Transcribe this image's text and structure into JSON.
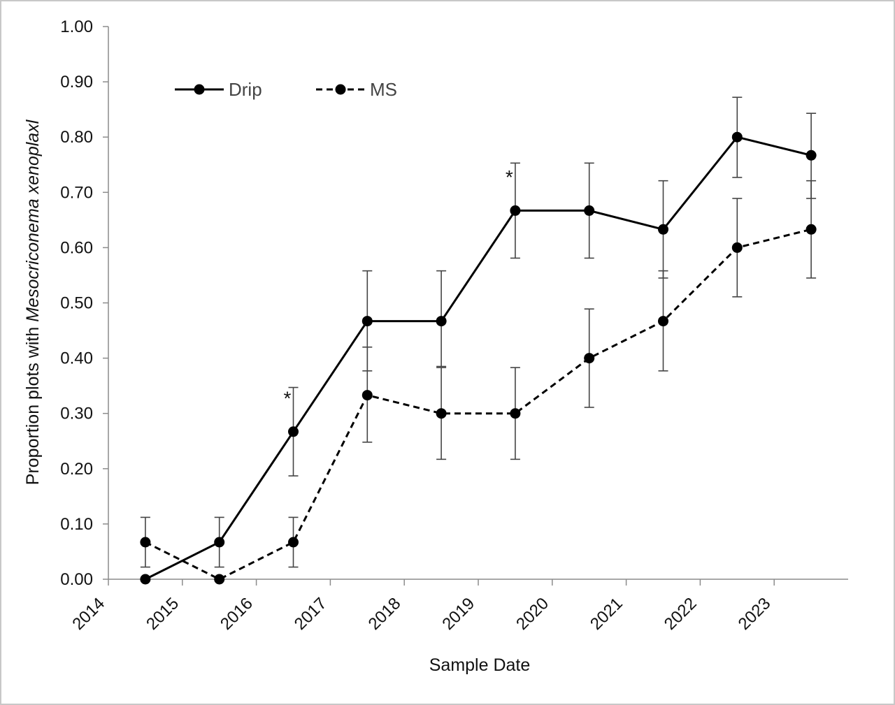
{
  "chart_data": {
    "type": "line",
    "xlabel": "Sample Date",
    "ylabel_prefix": "Proportion plots with ",
    "ylabel_italic": "Mesocriconema xenoplaxl",
    "x_tick_labels": [
      "2014",
      "2015",
      "2016",
      "2017",
      "2018",
      "2019",
      "2020",
      "2021",
      "2022",
      "2023"
    ],
    "y_tick_labels": [
      "0.00",
      "0.10",
      "0.20",
      "0.30",
      "0.40",
      "0.50",
      "0.60",
      "0.70",
      "0.80",
      "0.90",
      "1.00"
    ],
    "xlim": [
      2014.0,
      2024.0
    ],
    "ylim": [
      0,
      1.0
    ],
    "grid": false,
    "legend_position": "top-left",
    "series": [
      {
        "name": "Drip",
        "line_style": "solid",
        "color": "#000000",
        "x": [
          2014.5,
          2015.5,
          2016.5,
          2017.5,
          2018.5,
          2019.5,
          2020.5,
          2021.5,
          2022.5,
          2023.5
        ],
        "y": [
          0.0,
          0.067,
          0.267,
          0.467,
          0.467,
          0.667,
          0.667,
          0.633,
          0.8,
          0.767
        ],
        "err_low": [
          0.0,
          0.022,
          0.187,
          0.377,
          0.385,
          0.581,
          0.581,
          0.545,
          0.727,
          0.689
        ],
        "err_high": [
          0.0,
          0.112,
          0.347,
          0.558,
          0.558,
          0.753,
          0.753,
          0.721,
          0.872,
          0.843
        ]
      },
      {
        "name": "MS",
        "line_style": "dashed",
        "color": "#000000",
        "x": [
          2014.5,
          2015.5,
          2016.5,
          2017.5,
          2018.5,
          2019.5,
          2020.5,
          2021.5,
          2022.5,
          2023.5
        ],
        "y": [
          0.067,
          0.0,
          0.067,
          0.333,
          0.3,
          0.3,
          0.4,
          0.467,
          0.6,
          0.633
        ],
        "err_low": [
          0.022,
          0.0,
          0.022,
          0.248,
          0.217,
          0.217,
          0.311,
          0.377,
          0.511,
          0.545
        ],
        "err_high": [
          0.112,
          0.0,
          0.112,
          0.42,
          0.383,
          0.383,
          0.489,
          0.558,
          0.689,
          0.721
        ]
      }
    ],
    "annotations": [
      {
        "text": "*",
        "x": 2016.4,
        "y": 0.27
      },
      {
        "text": "*",
        "x": 2019.4,
        "y": 0.67
      }
    ]
  }
}
